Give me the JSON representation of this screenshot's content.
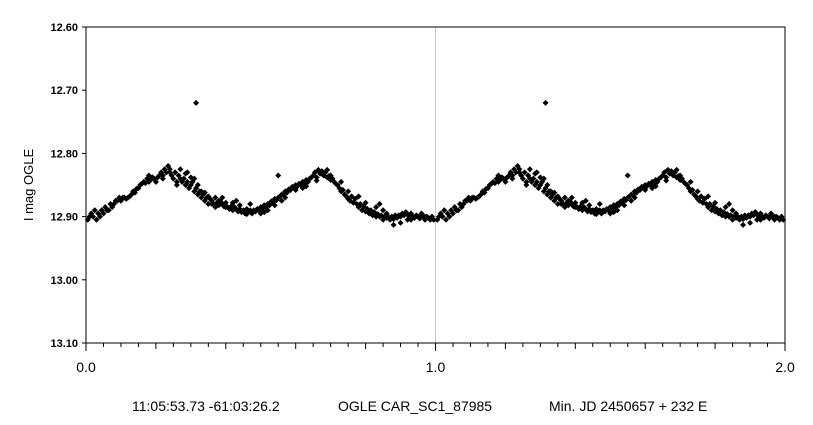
{
  "chart_data": {
    "type": "scatter",
    "title": "",
    "xlabel": "",
    "ylabel": "I mag OGLE",
    "xlim": [
      0,
      2
    ],
    "ylim": [
      12.6,
      13.1
    ],
    "y_inverted": true,
    "x_ticks": [
      "0.0",
      "1.0",
      "2.0"
    ],
    "x_tick_values": [
      0,
      1,
      2
    ],
    "y_ticks": [
      "12.60",
      "12.70",
      "12.80",
      "12.90",
      "13.00",
      "13.10"
    ],
    "y_tick_values": [
      12.6,
      12.7,
      12.8,
      12.9,
      13.0,
      13.1
    ],
    "grid": "vertical line at 1.0",
    "marker": "diamond",
    "marker_color": "#000000",
    "series": [
      {
        "points_phase_0_to_1": [
          [
            0.005,
            12.905
          ],
          [
            0.01,
            12.9
          ],
          [
            0.015,
            12.895
          ],
          [
            0.02,
            12.9
          ],
          [
            0.025,
            12.89
          ],
          [
            0.03,
            12.905
          ],
          [
            0.035,
            12.895
          ],
          [
            0.04,
            12.9
          ],
          [
            0.045,
            12.89
          ],
          [
            0.05,
            12.895
          ],
          [
            0.055,
            12.885
          ],
          [
            0.06,
            12.89
          ],
          [
            0.065,
            12.89
          ],
          [
            0.07,
            12.88
          ],
          [
            0.075,
            12.885
          ],
          [
            0.08,
            12.88
          ],
          [
            0.085,
            12.875
          ],
          [
            0.09,
            12.875
          ],
          [
            0.095,
            12.87
          ],
          [
            0.1,
            12.875
          ],
          [
            0.105,
            12.87
          ],
          [
            0.11,
            12.87
          ],
          [
            0.115,
            12.872
          ],
          [
            0.12,
            12.87
          ],
          [
            0.125,
            12.868
          ],
          [
            0.13,
            12.865
          ],
          [
            0.135,
            12.86
          ],
          [
            0.14,
            12.862
          ],
          [
            0.145,
            12.856
          ],
          [
            0.15,
            12.855
          ],
          [
            0.155,
            12.85
          ],
          [
            0.16,
            12.848
          ],
          [
            0.165,
            12.845
          ],
          [
            0.17,
            12.847
          ],
          [
            0.175,
            12.84
          ],
          [
            0.18,
            12.845
          ],
          [
            0.185,
            12.842
          ],
          [
            0.19,
            12.838
          ],
          [
            0.195,
            12.84
          ],
          [
            0.2,
            12.845
          ],
          [
            0.205,
            12.838
          ],
          [
            0.21,
            12.835
          ],
          [
            0.215,
            12.83
          ],
          [
            0.22,
            12.835
          ],
          [
            0.225,
            12.825
          ],
          [
            0.23,
            12.83
          ],
          [
            0.235,
            12.82
          ],
          [
            0.24,
            12.83
          ],
          [
            0.245,
            12.835
          ],
          [
            0.25,
            12.84
          ],
          [
            0.255,
            12.83
          ],
          [
            0.26,
            12.845
          ],
          [
            0.265,
            12.835
          ],
          [
            0.27,
            12.84
          ],
          [
            0.275,
            12.845
          ],
          [
            0.28,
            12.84
          ],
          [
            0.285,
            12.85
          ],
          [
            0.29,
            12.845
          ],
          [
            0.295,
            12.855
          ],
          [
            0.3,
            12.85
          ],
          [
            0.305,
            12.845
          ],
          [
            0.31,
            12.86
          ],
          [
            0.315,
            12.855
          ],
          [
            0.32,
            12.865
          ],
          [
            0.325,
            12.86
          ],
          [
            0.33,
            12.87
          ],
          [
            0.335,
            12.865
          ],
          [
            0.34,
            12.875
          ],
          [
            0.345,
            12.87
          ],
          [
            0.35,
            12.88
          ],
          [
            0.355,
            12.872
          ],
          [
            0.36,
            12.875
          ],
          [
            0.365,
            12.88
          ],
          [
            0.37,
            12.87
          ],
          [
            0.375,
            12.878
          ],
          [
            0.38,
            12.882
          ],
          [
            0.385,
            12.876
          ],
          [
            0.39,
            12.88
          ],
          [
            0.395,
            12.884
          ],
          [
            0.4,
            12.878
          ],
          [
            0.405,
            12.885
          ],
          [
            0.41,
            12.888
          ],
          [
            0.415,
            12.884
          ],
          [
            0.42,
            12.89
          ],
          [
            0.425,
            12.885
          ],
          [
            0.43,
            12.888
          ],
          [
            0.435,
            12.892
          ],
          [
            0.44,
            12.888
          ],
          [
            0.445,
            12.893
          ],
          [
            0.45,
            12.89
          ],
          [
            0.455,
            12.895
          ],
          [
            0.46,
            12.888
          ],
          [
            0.465,
            12.893
          ],
          [
            0.47,
            12.89
          ],
          [
            0.475,
            12.895
          ],
          [
            0.48,
            12.89
          ],
          [
            0.485,
            12.892
          ],
          [
            0.49,
            12.888
          ],
          [
            0.495,
            12.89
          ],
          [
            0.5,
            12.885
          ],
          [
            0.505,
            12.888
          ],
          [
            0.51,
            12.882
          ],
          [
            0.515,
            12.885
          ],
          [
            0.52,
            12.88
          ],
          [
            0.525,
            12.882
          ],
          [
            0.53,
            12.876
          ],
          [
            0.535,
            12.878
          ],
          [
            0.54,
            12.872
          ],
          [
            0.545,
            12.874
          ],
          [
            0.55,
            12.87
          ],
          [
            0.555,
            12.868
          ],
          [
            0.56,
            12.865
          ],
          [
            0.565,
            12.866
          ],
          [
            0.57,
            12.86
          ],
          [
            0.575,
            12.862
          ],
          [
            0.58,
            12.857
          ],
          [
            0.585,
            12.858
          ],
          [
            0.59,
            12.853
          ],
          [
            0.595,
            12.855
          ],
          [
            0.6,
            12.85
          ],
          [
            0.605,
            12.852
          ],
          [
            0.61,
            12.848
          ],
          [
            0.615,
            12.85
          ],
          [
            0.62,
            12.845
          ],
          [
            0.625,
            12.848
          ],
          [
            0.63,
            12.842
          ],
          [
            0.635,
            12.845
          ],
          [
            0.64,
            12.84
          ],
          [
            0.645,
            12.838
          ],
          [
            0.65,
            12.835
          ],
          [
            0.655,
            12.83
          ],
          [
            0.66,
            12.838
          ],
          [
            0.665,
            12.826
          ],
          [
            0.67,
            12.832
          ],
          [
            0.675,
            12.828
          ],
          [
            0.68,
            12.835
          ],
          [
            0.685,
            12.83
          ],
          [
            0.69,
            12.838
          ],
          [
            0.695,
            12.836
          ],
          [
            0.7,
            12.842
          ],
          [
            0.705,
            12.84
          ],
          [
            0.71,
            12.845
          ],
          [
            0.715,
            12.848
          ],
          [
            0.72,
            12.85
          ],
          [
            0.725,
            12.855
          ],
          [
            0.73,
            12.86
          ],
          [
            0.735,
            12.858
          ],
          [
            0.74,
            12.865
          ],
          [
            0.745,
            12.868
          ],
          [
            0.75,
            12.872
          ],
          [
            0.755,
            12.875
          ],
          [
            0.76,
            12.868
          ],
          [
            0.765,
            12.878
          ],
          [
            0.77,
            12.872
          ],
          [
            0.775,
            12.88
          ],
          [
            0.78,
            12.885
          ],
          [
            0.785,
            12.88
          ],
          [
            0.79,
            12.89
          ],
          [
            0.795,
            12.884
          ],
          [
            0.8,
            12.892
          ],
          [
            0.805,
            12.888
          ],
          [
            0.81,
            12.895
          ],
          [
            0.815,
            12.89
          ],
          [
            0.82,
            12.898
          ],
          [
            0.825,
            12.893
          ],
          [
            0.83,
            12.9
          ],
          [
            0.835,
            12.896
          ],
          [
            0.84,
            12.9
          ],
          [
            0.845,
            12.898
          ],
          [
            0.85,
            12.905
          ],
          [
            0.855,
            12.9
          ],
          [
            0.86,
            12.902
          ],
          [
            0.865,
            12.9
          ],
          [
            0.87,
            12.905
          ],
          [
            0.875,
            12.9
          ],
          [
            0.88,
            12.904
          ],
          [
            0.885,
            12.898
          ],
          [
            0.89,
            12.902
          ],
          [
            0.895,
            12.898
          ],
          [
            0.9,
            12.9
          ],
          [
            0.905,
            12.895
          ],
          [
            0.91,
            12.898
          ],
          [
            0.915,
            12.893
          ],
          [
            0.92,
            12.896
          ],
          [
            0.925,
            12.9
          ],
          [
            0.93,
            12.895
          ],
          [
            0.935,
            12.9
          ],
          [
            0.94,
            12.902
          ],
          [
            0.945,
            12.898
          ],
          [
            0.95,
            12.9
          ],
          [
            0.955,
            12.903
          ],
          [
            0.96,
            12.898
          ],
          [
            0.965,
            12.9
          ],
          [
            0.97,
            12.905
          ],
          [
            0.975,
            12.9
          ],
          [
            0.98,
            12.902
          ],
          [
            0.985,
            12.905
          ],
          [
            0.99,
            12.9
          ],
          [
            0.995,
            12.905
          ],
          [
            0.26,
            12.85
          ],
          [
            0.27,
            12.825
          ],
          [
            0.29,
            12.83
          ],
          [
            0.3,
            12.838
          ],
          [
            0.31,
            12.84
          ],
          [
            0.32,
            12.85
          ],
          [
            0.33,
            12.86
          ],
          [
            0.35,
            12.868
          ],
          [
            0.36,
            12.88
          ],
          [
            0.37,
            12.885
          ],
          [
            0.38,
            12.875
          ],
          [
            0.4,
            12.885
          ],
          [
            0.42,
            12.878
          ],
          [
            0.44,
            12.882
          ],
          [
            0.46,
            12.896
          ],
          [
            0.5,
            12.895
          ],
          [
            0.52,
            12.89
          ],
          [
            0.54,
            12.882
          ],
          [
            0.57,
            12.87
          ],
          [
            0.6,
            12.858
          ],
          [
            0.63,
            12.852
          ],
          [
            0.69,
            12.826
          ],
          [
            0.73,
            12.845
          ],
          [
            0.78,
            12.868
          ],
          [
            0.83,
            12.885
          ],
          [
            0.86,
            12.895
          ],
          [
            0.9,
            12.91
          ],
          [
            0.93,
            12.905
          ],
          [
            0.96,
            12.895
          ],
          [
            0.315,
            12.72
          ],
          [
            0.55,
            12.835
          ],
          [
            0.84,
            12.88
          ],
          [
            0.88,
            12.913
          ],
          [
            0.22,
            12.84
          ],
          [
            0.18,
            12.835
          ],
          [
            0.24,
            12.825
          ],
          [
            0.285,
            12.832
          ],
          [
            0.34,
            12.862
          ],
          [
            0.39,
            12.87
          ],
          [
            0.43,
            12.875
          ],
          [
            0.47,
            12.88
          ],
          [
            0.51,
            12.893
          ],
          [
            0.56,
            12.875
          ],
          [
            0.62,
            12.855
          ],
          [
            0.66,
            12.843
          ],
          [
            0.7,
            12.835
          ],
          [
            0.75,
            12.86
          ],
          [
            0.8,
            12.878
          ],
          [
            0.85,
            12.89
          ],
          [
            0.92,
            12.905
          ],
          [
            0.97,
            12.9
          ]
        ],
        "repeat_period": 1
      }
    ]
  },
  "footer": {
    "coords": "11:05:53.73 -61:03:26.2",
    "name": "OGLE CAR_SC1_87985",
    "ephemeris": "Min. JD 2450657 + 232 E"
  }
}
